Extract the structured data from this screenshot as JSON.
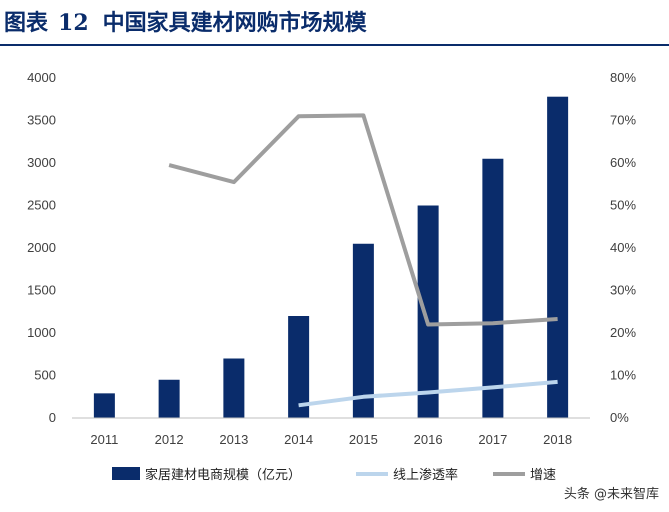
{
  "header": {
    "prefix": "图表",
    "number": "12",
    "title": "中国家具建材网购市场规模"
  },
  "watermark": "头条 @未来智库",
  "colors": {
    "bars": "#0a2c6b",
    "penetration": "#bcd5ec",
    "growth": "#9e9e9e",
    "title": "#0a2c6b"
  },
  "chart_data": {
    "type": "bar",
    "categories": [
      "2011",
      "2012",
      "2013",
      "2014",
      "2015",
      "2016",
      "2017",
      "2018"
    ],
    "ylim_left": [
      0,
      4000
    ],
    "yticks_left": [
      "0",
      "500",
      "1000",
      "1500",
      "2000",
      "2500",
      "3000",
      "3500",
      "4000"
    ],
    "ylim_right": [
      0,
      0.8
    ],
    "yticks_right": [
      "0%",
      "10%",
      "20%",
      "30%",
      "40%",
      "50%",
      "60%",
      "70%",
      "80%"
    ],
    "legend_position": "bottom",
    "series": [
      {
        "name": "家居建材电商规模（亿元）",
        "type": "bar",
        "axis": "left",
        "values": [
          290,
          450,
          700,
          1200,
          2050,
          2500,
          3050,
          3780
        ]
      },
      {
        "name": "线上渗透率",
        "type": "line",
        "axis": "right",
        "values": [
          null,
          null,
          null,
          0.03,
          0.05,
          0.06,
          0.072,
          0.085
        ]
      },
      {
        "name": "增速",
        "type": "line",
        "axis": "right",
        "values": [
          null,
          0.595,
          0.555,
          0.71,
          0.712,
          0.22,
          0.223,
          0.233
        ]
      }
    ]
  }
}
